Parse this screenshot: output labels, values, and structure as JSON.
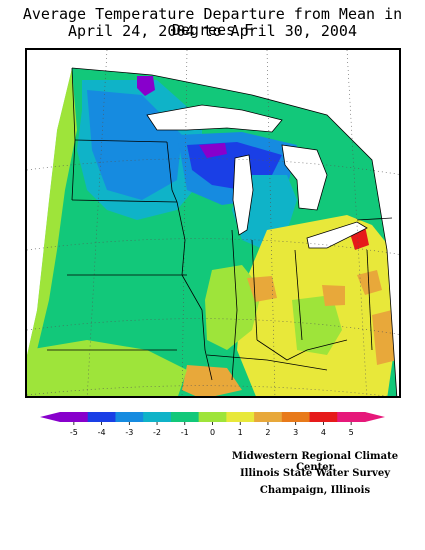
{
  "map": {
    "title_line1": "Average Temperature Departure from Mean in Degrees F",
    "title_line2": "April 24, 2004 to April 30, 2004"
  },
  "legend": {
    "ticks": [
      "-5",
      "-4",
      "-3",
      "-2",
      "-1",
      "0",
      "1",
      "2",
      "3",
      "4",
      "5"
    ],
    "colors": [
      "#8800cc",
      "#1a3fe6",
      "#168be0",
      "#0fb3c8",
      "#12c87a",
      "#9ee43a",
      "#e8e83a",
      "#e8a83a",
      "#e87a1a",
      "#e61a1a",
      "#e6187a"
    ]
  },
  "credits": {
    "line1": "Midwestern Regional Climate Center",
    "line2": "Illinois State Water Survey",
    "line3": "Champaign, Illinois"
  }
}
